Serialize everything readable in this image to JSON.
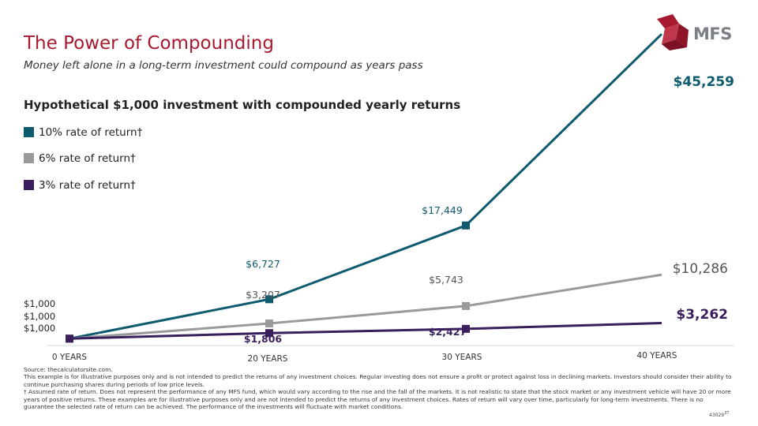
{
  "header": {
    "title": "The Power of Compounding",
    "subtitle": "Money left alone in a long-term investment could compound as years pass",
    "logo_text": "MFS"
  },
  "brand_colors": {
    "title": "#a6192e",
    "logo_mark": "#a6192e",
    "logo_text": "#7a7f86"
  },
  "chart_data": {
    "type": "line",
    "title": "Hypothetical $1,000 investment with compounded yearly returns",
    "x": [
      "0 YEARS",
      "20 YEARS",
      "30 YEARS",
      "40 YEARS"
    ],
    "x_values": [
      0,
      20,
      30,
      40
    ],
    "ylim": [
      0,
      47000
    ],
    "grid": false,
    "legend_position": "top-left",
    "series": [
      {
        "name": "10% rate of return†",
        "color": "#0e5a6e",
        "values": [
          1000,
          6727,
          17449,
          45259
        ],
        "labels": [
          "$1,000",
          "$6,727",
          "$17,449",
          "$45,259"
        ]
      },
      {
        "name": "6% rate of return†",
        "color": "#9a9a9a",
        "values": [
          1000,
          3207,
          5743,
          10286
        ],
        "labels": [
          "$1,000",
          "$3,207",
          "$5,743",
          "$10,286"
        ]
      },
      {
        "name": "3% rate of return†",
        "color": "#3b1e5c",
        "values": [
          1000,
          1806,
          2427,
          3262
        ],
        "labels": [
          "$1,000",
          "$1,806",
          "$2,427",
          "$3,262"
        ]
      }
    ]
  },
  "footnotes": {
    "source": "Source: thecalculatorsite.com.",
    "disclaimer": "This example is for illustrative purposes only and is not intended to predict the returns of any investment choices. Regular investing does not ensure a profit or protect against loss in declining markets. Investors should consider their ability to continue purchasing shares during periods of low price levels.",
    "assumed_rate": "† Assumed rate of return. Does not represent the performance of any MFS fund, which would vary according to the rise and the fall of the markets. It is not realistic to state that the stock market or any investment vehicle will have 20 or more years of positive returns. These examples are for illustrative purposes only and are not intended to predict the returns of any investment choices. Rates of return will vary over time, particularly for long-term investments. There is no guarantee the selected rate of return can be achieved. The performance of the investments will fluctuate with market conditions."
  },
  "page": {
    "code": "43029",
    "number": "37"
  }
}
